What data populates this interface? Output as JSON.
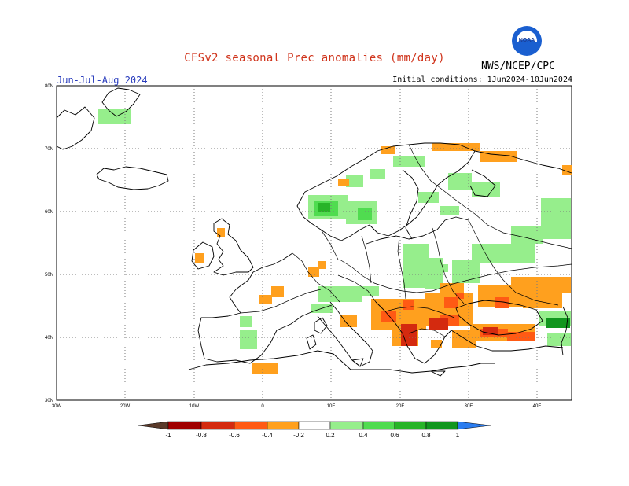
{
  "header": {
    "title": "CFSv2 seasonal Prec anomalies (mm/day)",
    "period": "Jun-Jul-Aug 2024",
    "agency": "NWS/NCEP/CPC",
    "initial_conditions": "Initial conditions: 1Jun2024-10Jun2024",
    "logo_text": "NOAA"
  },
  "map": {
    "lat_labels": [
      "30N",
      "40N",
      "50N",
      "60N",
      "70N",
      "80N"
    ],
    "lon_labels": [
      "30W",
      "20W",
      "10W",
      "0",
      "10E",
      "20E",
      "30E",
      "40E"
    ],
    "region": "Europe",
    "gridlines": true
  },
  "legend": {
    "ticks": [
      "-1",
      "-0.8",
      "-0.6",
      "-0.4",
      "-0.2",
      "0.2",
      "0.4",
      "0.6",
      "0.8",
      "1"
    ],
    "colors": [
      "#5a3a2a",
      "#a00000",
      "#d42a0f",
      "#ff5a14",
      "#ffa01e",
      "#ffffff",
      "#96ee8c",
      "#50dc50",
      "#28b428",
      "#11961e",
      "#2a7cf0"
    ]
  },
  "colors": {
    "title": "#d0341c",
    "period": "#2a3dbd",
    "orange": "#ffa01e",
    "red_orange": "#ff5a14",
    "red": "#d42a0f",
    "light_green": "#96ee8c",
    "green": "#50dc50",
    "dark_green": "#11961e"
  }
}
